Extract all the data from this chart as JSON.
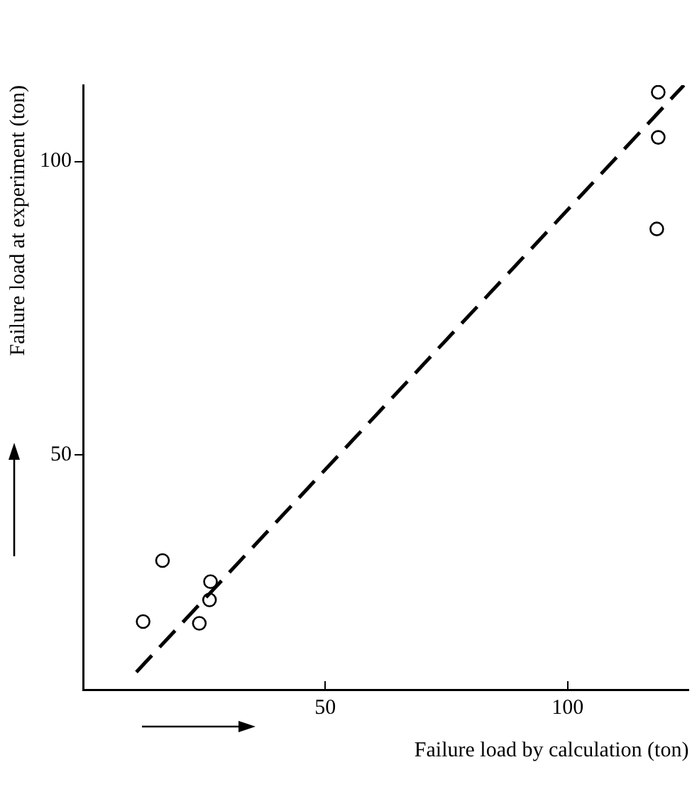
{
  "chart_data": {
    "type": "scatter",
    "xlabel": "Failure load by calculation (ton)",
    "ylabel": "Failure load at experiment (ton)",
    "xlim": [
      0,
      125
    ],
    "ylim": [
      10,
      113
    ],
    "xticks": [
      50,
      100
    ],
    "yticks": [
      50,
      100
    ],
    "grid": false,
    "legend": false,
    "marker": "circle",
    "series": [
      {
        "color": "#000000",
        "x": [
          16.4,
          26.3,
          26.1,
          12.4,
          24.0,
          118.7,
          118.7,
          118.4
        ],
        "values": [
          32.0,
          28.4,
          25.3,
          21.6,
          21.3,
          111.8,
          104.1,
          88.5
        ]
      },
      {
        "type": "line",
        "color": "#000000",
        "line_style": "dashed",
        "marker": "none",
        "x": [
          11,
          124
        ],
        "values": [
          13,
          113
        ]
      }
    ]
  }
}
